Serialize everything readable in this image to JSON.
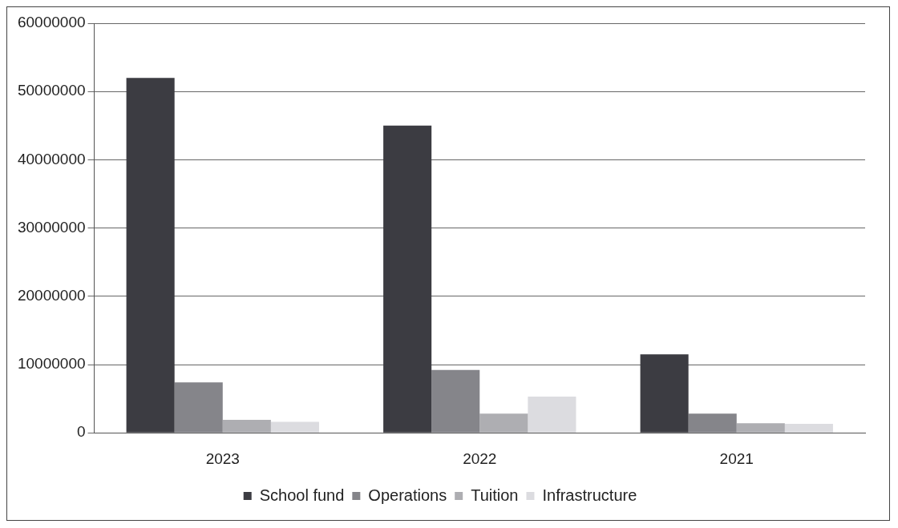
{
  "chart_data": {
    "type": "bar",
    "categories": [
      "2023",
      "2022",
      "2021"
    ],
    "series": [
      {
        "name": "School fund",
        "color": "#3c3c42",
        "values": [
          52000000,
          45000000,
          11500000
        ]
      },
      {
        "name": "Operations",
        "color": "#85858a",
        "values": [
          7400000,
          9200000,
          2800000
        ]
      },
      {
        "name": "Tuition",
        "color": "#aeaeb2",
        "values": [
          1900000,
          2800000,
          1400000
        ]
      },
      {
        "name": "Infrastructure",
        "color": "#dcdce0",
        "values": [
          1600000,
          5300000,
          1300000
        ]
      }
    ],
    "ylim": [
      0,
      60000000
    ],
    "yticks": [
      0,
      10000000,
      20000000,
      30000000,
      40000000,
      50000000,
      60000000
    ],
    "grid": "y",
    "legend": "bottom"
  }
}
